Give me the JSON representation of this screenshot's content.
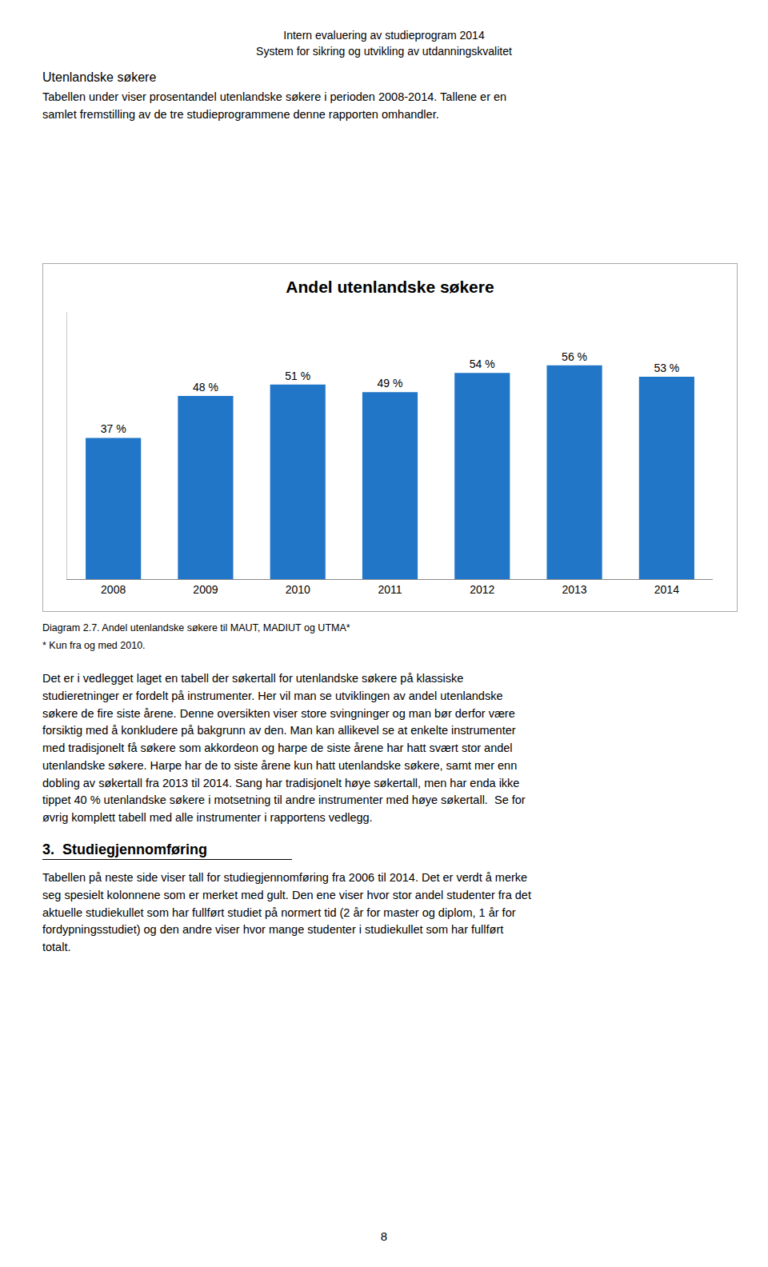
{
  "page": {
    "header": [
      "Intern evaluering av studieprogram 2014",
      "System for sikring og utvikling av utdanningskvalitet"
    ],
    "section_title": "Utenlandske søkere",
    "paragraph": "Tabellen under viser prosentandel utenlandske søkere i perioden 2008-2014. Tallene er en\nsamlet fremstilling av de tre studieprogrammene denne rapporten omhandler.",
    "caption": [
      "Diagram 2.7. Andel utenlandske søkere til MAUT, MADIUT og UTMA*",
      "* Kun fra og med 2010."
    ],
    "body_text": "Det er i vedlegget laget en tabell der søkertall for utenlandske søkere på klassiske\nstudieretninger er fordelt på instrumenter. Her vil man se utviklingen av andel utenlandske\nsøkere de fire siste årene. Denne oversikten viser store svingninger og man bør derfor være\nforsiktig med å konkludere på bakgrunn av den. Man kan allikevel se at enkelte instrumenter\nmed tradisjonelt få søkere som akkordeon og harpe de siste årene har hatt svært stor andel\nutenlandske søkere. Harpe har de to siste årene kun hatt utenlandske søkere, samt mer enn\ndobling av søkertall fra 2013 til 2014. Sang har tradisjonelt høye søkertall, men har enda ikke\ntippet 40 % utenlandske søkere i motsetning til andre instrumenter med høye søkertall.  Se for\nøvrig komplett tabell med alle instrumenter i rapportens vedlegg.",
    "section2_title": "3.  Studiegjennomføring",
    "body_text2": "Tabellen på neste side viser tall for studiegjennomføring fra 2006 til 2014. Det er verdt å merke\nseg spesielt kolonnene som er merket med gult. Den ene viser hvor stor andel studenter fra det\naktuelle studiekullet som har fullført studiet på normert tid (2 år for master og diplom, 1 år for\nfordypningsstudiet) og den andre viser hvor mange studenter i studiekullet som har fullført\ntotalt.",
    "page_number": "8"
  },
  "chart_data": {
    "type": "bar",
    "title": "Andel utenlandske søkere",
    "categories": [
      "2008",
      "2009",
      "2010",
      "2011",
      "2012",
      "2013",
      "2014"
    ],
    "values": [
      37,
      48,
      51,
      49,
      54,
      56,
      53
    ],
    "value_labels": [
      "37 %",
      "48 %",
      "51 %",
      "49 %",
      "54 %",
      "56 %",
      "53 %"
    ],
    "color": "#2176C8",
    "ylim": [
      0,
      70
    ],
    "data_labels": true,
    "tick_labels": "x",
    "grid": false
  }
}
